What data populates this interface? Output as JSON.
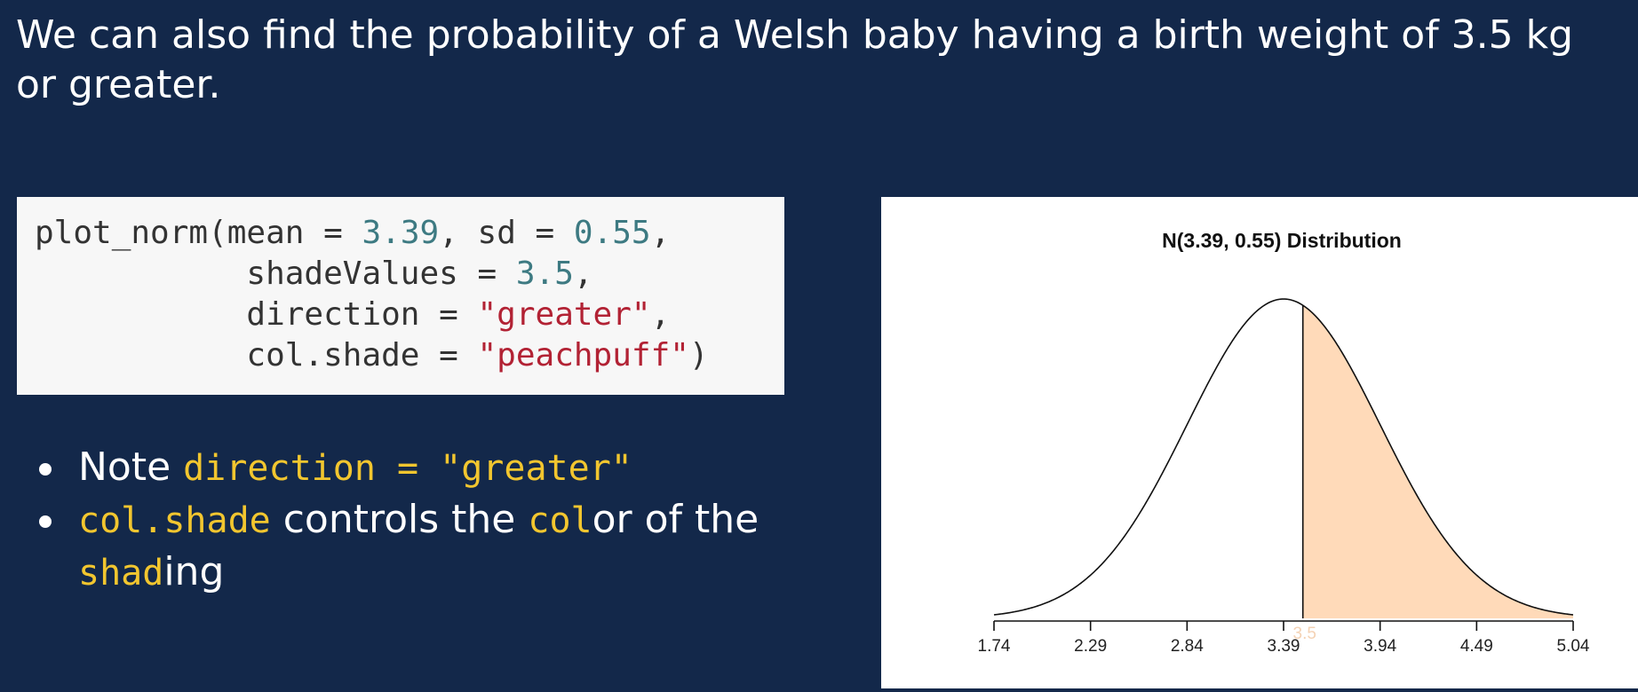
{
  "heading": "We can also find the probability of a Welsh baby having a birth weight of 3.5 kg or greater.",
  "code": {
    "line1": {
      "fn": "plot_norm(mean = ",
      "mean": "3.39",
      "mid": ", sd = ",
      "sd": "0.55",
      "end": ","
    },
    "line2": {
      "indent": "           shadeValues = ",
      "val": "3.5",
      "end": ","
    },
    "line3": {
      "indent": "           direction = ",
      "val": "\"greater\"",
      "end": ","
    },
    "line4": {
      "indent": "           col.shade = ",
      "val": "\"peachpuff\"",
      "end": ")"
    }
  },
  "bullets": {
    "b1_text": "Note ",
    "b1_code": "direction = \"greater\"",
    "b2_code1": "col.shade",
    "b2_text1": " controls the ",
    "b2_code2": "col",
    "b2_text2": "or of the ",
    "b2_code3": "shad",
    "b2_text3": "ing"
  },
  "chart_data": {
    "type": "area",
    "title": "N(3.39, 0.55) Distribution",
    "mean": 3.39,
    "sd": 0.55,
    "shade_value": 3.5,
    "shade_label": "3.5",
    "direction": "greater",
    "shade_color": "#ffdab9",
    "x_ticks": [
      1.74,
      2.29,
      2.84,
      3.39,
      3.94,
      4.49,
      5.04
    ],
    "x_tick_labels": [
      "1.74",
      "2.29",
      "2.84",
      "3.39",
      "3.94",
      "4.49",
      "5.04"
    ],
    "xlim": [
      1.74,
      5.04
    ],
    "xlabel": "",
    "ylabel": ""
  }
}
